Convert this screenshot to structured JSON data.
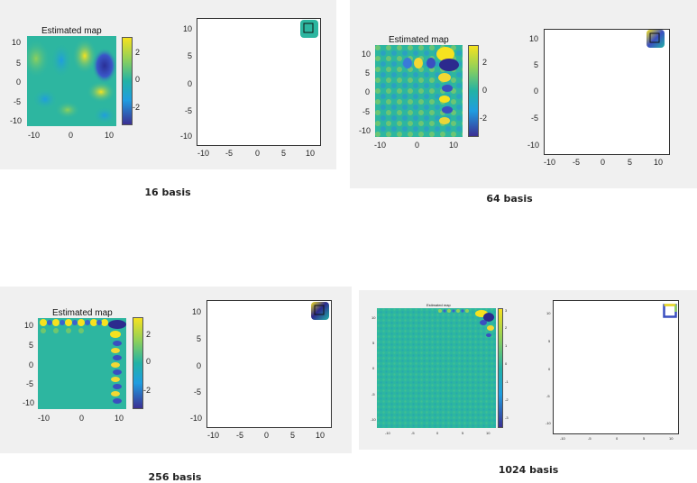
{
  "colors": {
    "panel_bg": "#f0f0f0",
    "cmap_low": "#3b2f93",
    "cmap_mid": "#22b2a6",
    "cmap_high": "#f6e21f",
    "field_bg": "#2db6a0"
  },
  "figures": [
    {
      "id": "fig16",
      "caption": "16 basis",
      "heat_title": "Estimated map",
      "heat_y_ticks": [
        "10",
        "5",
        "0",
        "-5",
        "-10"
      ],
      "heat_x_ticks": [
        "-10",
        "0",
        "10"
      ],
      "colorbar_ticks": [
        "2",
        "0",
        "-2"
      ],
      "plot_y_ticks": [
        "10",
        "5",
        "0",
        "-5",
        "-10"
      ],
      "plot_x_ticks": [
        "-10",
        "-5",
        "0",
        "5",
        "10"
      ]
    },
    {
      "id": "fig64",
      "caption": "64 basis",
      "heat_title": "Estimated map",
      "heat_y_ticks": [
        "10",
        "5",
        "0",
        "-5",
        "-10"
      ],
      "heat_x_ticks": [
        "-10",
        "0",
        "10"
      ],
      "colorbar_ticks": [
        "2",
        "0",
        "-2"
      ],
      "plot_y_ticks": [
        "10",
        "5",
        "0",
        "-5",
        "-10"
      ],
      "plot_x_ticks": [
        "-10",
        "-5",
        "0",
        "5",
        "10"
      ]
    },
    {
      "id": "fig256",
      "caption": "256 basis",
      "heat_title": "Estimated map",
      "heat_y_ticks": [
        "10",
        "5",
        "0",
        "-5",
        "-10"
      ],
      "heat_x_ticks": [
        "-10",
        "0",
        "10"
      ],
      "colorbar_ticks": [
        "2",
        "0",
        "-2"
      ],
      "plot_y_ticks": [
        "10",
        "5",
        "0",
        "-5",
        "-10"
      ],
      "plot_x_ticks": [
        "-10",
        "-5",
        "0",
        "5",
        "10"
      ]
    },
    {
      "id": "fig1024",
      "caption": "1024 basis",
      "heat_title": "Estimated map",
      "heat_y_ticks": [
        "10",
        "5",
        "0",
        "-5",
        "-10"
      ],
      "heat_x_ticks": [
        "-10",
        "-5",
        "0",
        "5",
        "10"
      ],
      "colorbar_ticks": [
        "3",
        "2",
        "1",
        "0",
        "-1",
        "-2",
        "-3"
      ],
      "plot_y_ticks": [
        "10",
        "5",
        "0",
        "-5",
        "-10"
      ],
      "plot_x_ticks": [
        "-10",
        "-5",
        "0",
        "5",
        "10"
      ]
    }
  ]
}
